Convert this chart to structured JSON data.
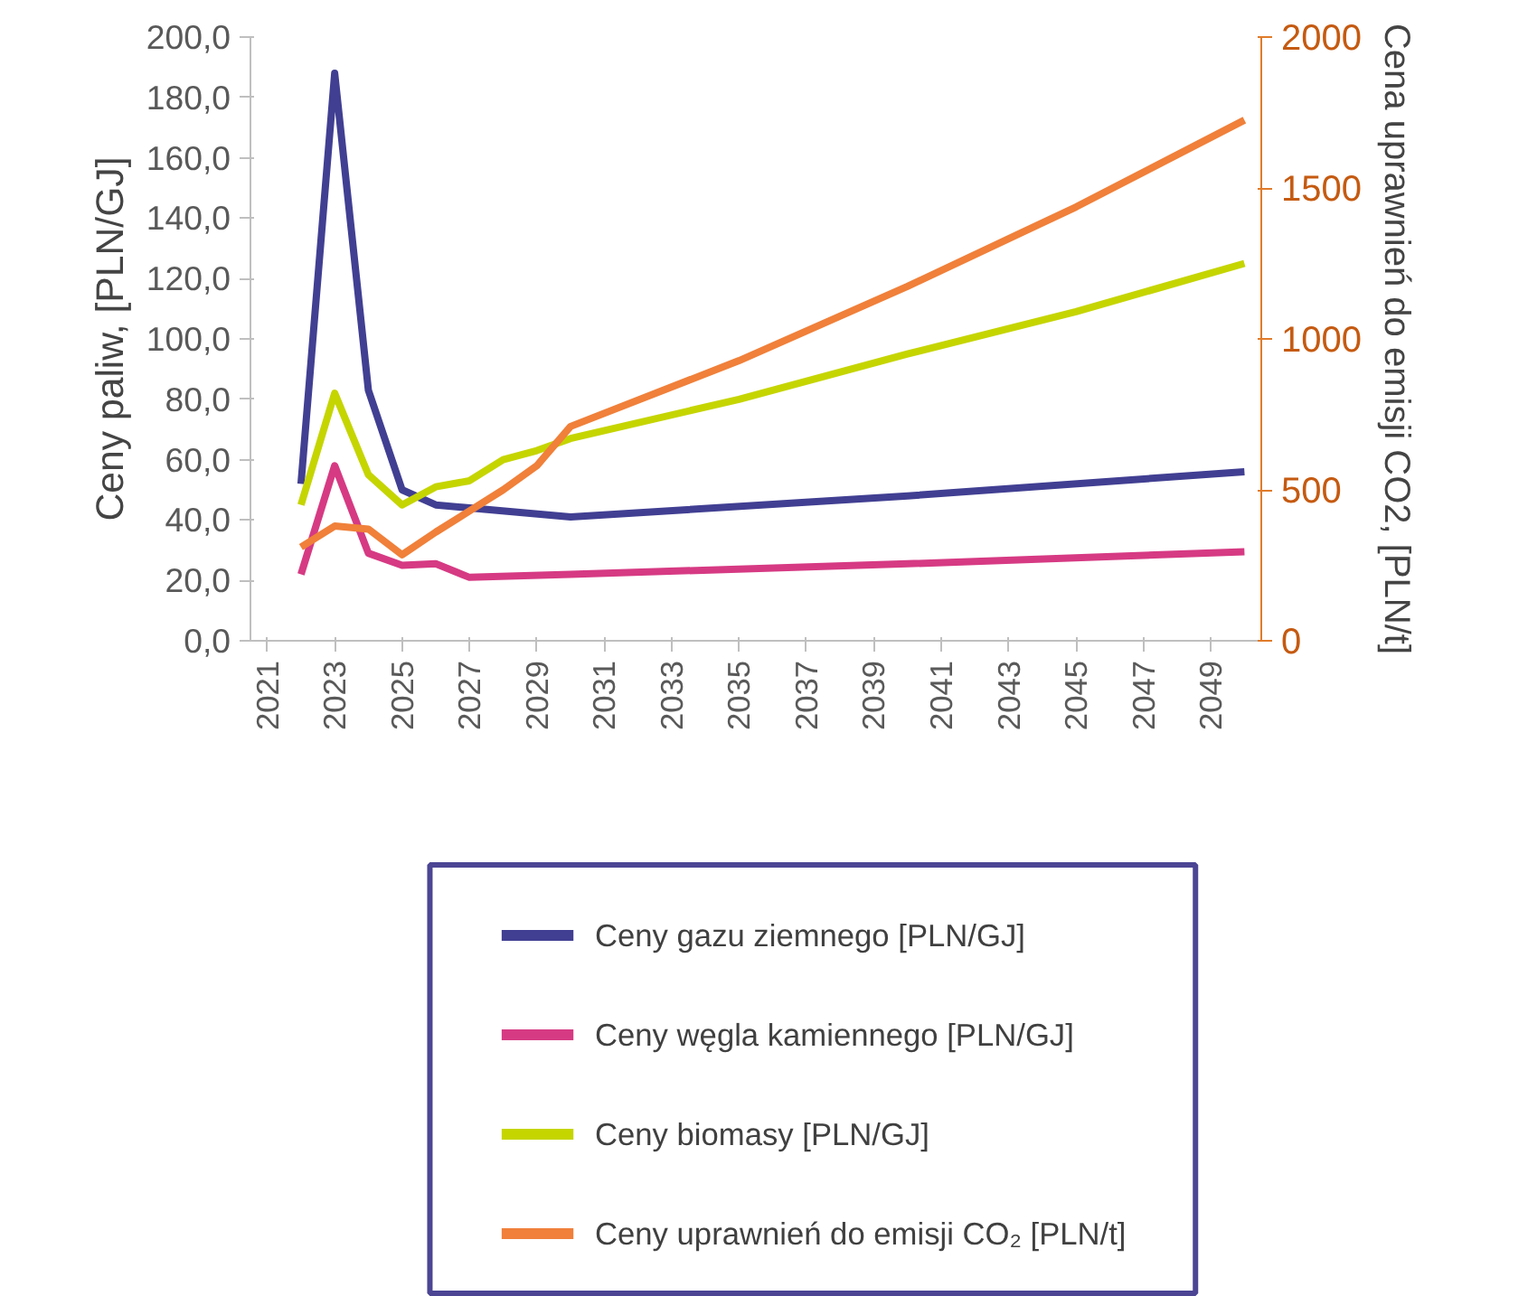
{
  "chart_data": {
    "type": "line",
    "ylabel": "Ceny paliw, [PLN/GJ]",
    "y2label": "Cena uprawnień do emisji CO2, [PLN/t]",
    "xlim": [
      2020.5,
      2050.5
    ],
    "xticks": [
      2021,
      2023,
      2025,
      2027,
      2029,
      2031,
      2033,
      2035,
      2037,
      2039,
      2041,
      2043,
      2045,
      2047,
      2049
    ],
    "ylim": [
      0,
      200
    ],
    "yticks": [
      {
        "value": 0,
        "label": "0,0"
      },
      {
        "value": 20,
        "label": "20,0"
      },
      {
        "value": 40,
        "label": "40,0"
      },
      {
        "value": 60,
        "label": "60,0"
      },
      {
        "value": 80,
        "label": "80,0"
      },
      {
        "value": 100,
        "label": "100,0"
      },
      {
        "value": 120,
        "label": "120,0"
      },
      {
        "value": 140,
        "label": "140,0"
      },
      {
        "value": 160,
        "label": "160,0"
      },
      {
        "value": 180,
        "label": "180,0"
      },
      {
        "value": 200,
        "label": "200,0"
      }
    ],
    "y2lim": [
      0,
      2000
    ],
    "y2ticks": [
      0,
      500,
      1000,
      1500,
      2000
    ],
    "grid": false,
    "legend": "bottom",
    "line_style": "solid",
    "marker": "none",
    "series": [
      {
        "name": "Ceny gazu ziemnego [PLN/GJ]",
        "color": "#413f92",
        "x": [
          2022,
          2023,
          2024,
          2025,
          2026,
          2027,
          2030,
          2040,
          2050
        ],
        "values": [
          52,
          188,
          83,
          50,
          45,
          44,
          41,
          48,
          56
        ]
      },
      {
        "name": "Ceny węgla kamiennego [PLN/GJ]",
        "color": "#d63a83",
        "x": [
          2022,
          2023,
          2024,
          2025,
          2026,
          2027,
          2030,
          2040,
          2050
        ],
        "values": [
          22,
          58,
          29,
          25,
          25.5,
          21,
          22,
          25.5,
          29.5
        ]
      },
      {
        "name": "Ceny biomasy [PLN/GJ]",
        "color": "#c5d500",
        "x": [
          2022,
          2023,
          2024,
          2025,
          2026,
          2027,
          2028,
          2029,
          2030,
          2035,
          2040,
          2045,
          2050
        ],
        "values": [
          45,
          82,
          55,
          45,
          51,
          53,
          60,
          63,
          67,
          80,
          95,
          109,
          125
        ]
      },
      {
        "name": "Ceny uprawnień do emisji CO₂ [PLN/t]",
        "color": "#f0803a",
        "axis": "y2",
        "x": [
          2022,
          2023,
          2024,
          2025,
          2026,
          2027,
          2028,
          2029,
          2030,
          2035,
          2040,
          2045,
          2050
        ],
        "values": [
          310,
          380,
          370,
          285,
          360,
          430,
          500,
          580,
          710,
          928,
          1174,
          1437,
          1725
        ]
      }
    ]
  }
}
